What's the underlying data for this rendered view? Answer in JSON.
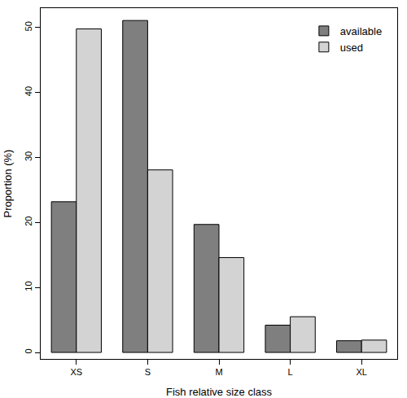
{
  "chart_data": {
    "type": "bar",
    "x_label": "Fish relative size class",
    "y_label": "Proportion (%)",
    "categories": [
      "XS",
      "S",
      "M",
      "L",
      "XL"
    ],
    "series": [
      {
        "name": "available",
        "color": "#7f7f7f",
        "values": [
          23.2,
          51.1,
          19.7,
          4.2,
          1.8
        ]
      },
      {
        "name": "used",
        "color": "#d3d3d3",
        "values": [
          49.8,
          28.1,
          14.6,
          5.5,
          1.9
        ]
      }
    ],
    "ylim": [
      -1,
      53
    ],
    "yticks": [
      0,
      10,
      20,
      30,
      40,
      50
    ],
    "grid": false,
    "legend": "top right"
  }
}
